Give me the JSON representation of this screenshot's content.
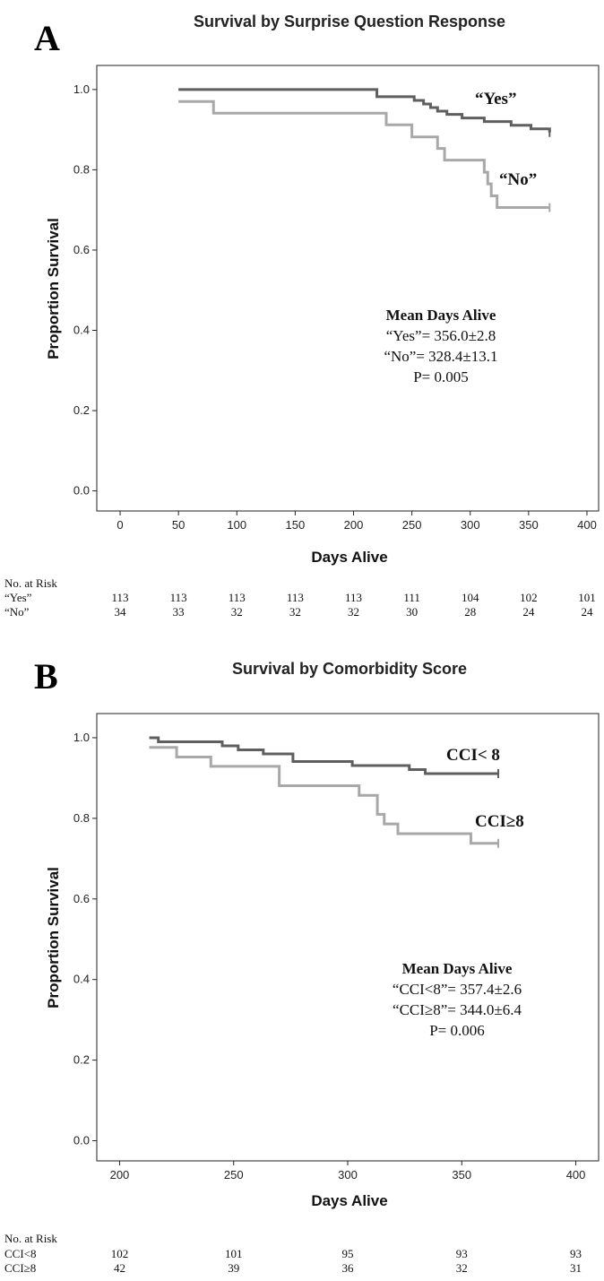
{
  "chart_data": [
    {
      "type": "line",
      "panel": "A",
      "title": "Survival by Surprise Question Response",
      "xlabel": "Days Alive",
      "ylabel": "Proportion Survival",
      "xlim": [
        -20,
        410
      ],
      "ylim": [
        -0.05,
        1.06
      ],
      "xticks": [
        0,
        50,
        100,
        150,
        200,
        250,
        300,
        350,
        400
      ],
      "yticks": [
        0.0,
        0.2,
        0.4,
        0.6,
        0.8,
        1.0
      ],
      "xtick_labels": [
        "0",
        "50",
        "100",
        "150",
        "200",
        "250",
        "300",
        "350",
        "400"
      ],
      "ytick_labels": [
        "0.0",
        "0.2",
        "0.4",
        "0.6",
        "0.8",
        "1.0"
      ],
      "grid": false,
      "series": [
        {
          "name": "“Yes”",
          "color": "#5f5f5f",
          "step": true,
          "x": [
            50,
            215,
            220,
            243,
            252,
            260,
            266,
            272,
            280,
            293,
            312,
            335,
            352,
            368
          ],
          "y": [
            1.0,
            1.0,
            0.982,
            0.982,
            0.973,
            0.964,
            0.955,
            0.946,
            0.938,
            0.929,
            0.92,
            0.911,
            0.902,
            0.893
          ],
          "censor": [
            [
              368,
              0.893
            ]
          ]
        },
        {
          "name": "“No”",
          "color": "#a8a8a8",
          "step": true,
          "x": [
            50,
            80,
            228,
            250,
            272,
            278,
            312,
            315,
            318,
            323,
            368
          ],
          "y": [
            0.97,
            0.941,
            0.912,
            0.882,
            0.853,
            0.824,
            0.794,
            0.765,
            0.735,
            0.706,
            0.706
          ],
          "censor": [
            [
              368,
              0.706
            ]
          ]
        }
      ],
      "annotation": {
        "heading": "Mean Days Alive",
        "lines": [
          "“Yes”= 356.0±2.8",
          "“No”= 328.4±13.1",
          "P= 0.005"
        ]
      },
      "risk_table": {
        "header": "No. at Risk",
        "rows": [
          {
            "label": "“Yes”",
            "values": [
              "113",
              "113",
              "113",
              "113",
              "113",
              "111",
              "104",
              "102",
              "101"
            ]
          },
          {
            "label": "“No”",
            "values": [
              "34",
              "33",
              "32",
              "32",
              "32",
              "30",
              "28",
              "24",
              "24"
            ]
          }
        ]
      }
    },
    {
      "type": "line",
      "panel": "B",
      "title": "Survival by Comorbidity Score",
      "xlabel": "Days Alive",
      "ylabel": "Proportion Survival",
      "xlim": [
        190,
        410
      ],
      "ylim": [
        -0.05,
        1.06
      ],
      "xticks": [
        200,
        250,
        300,
        350,
        400
      ],
      "yticks": [
        0.0,
        0.2,
        0.4,
        0.6,
        0.8,
        1.0
      ],
      "xtick_labels": [
        "200",
        "250",
        "300",
        "350",
        "400"
      ],
      "ytick_labels": [
        "0.0",
        "0.2",
        "0.4",
        "0.6",
        "0.8",
        "1.0"
      ],
      "grid": false,
      "series": [
        {
          "name": "CCI< 8",
          "color": "#5f5f5f",
          "step": true,
          "x": [
            213,
            217,
            245,
            252,
            263,
            276,
            302,
            327,
            334,
            366
          ],
          "y": [
            1.0,
            0.99,
            0.98,
            0.97,
            0.96,
            0.941,
            0.931,
            0.921,
            0.911,
            0.911
          ],
          "censor": [
            [
              366,
              0.911
            ]
          ]
        },
        {
          "name": "CCI≥8",
          "color": "#a8a8a8",
          "step": true,
          "x": [
            213,
            225,
            240,
            270,
            305,
            313,
            316,
            322,
            354,
            366
          ],
          "y": [
            0.976,
            0.952,
            0.929,
            0.881,
            0.857,
            0.81,
            0.786,
            0.762,
            0.738,
            0.738
          ],
          "censor": [
            [
              366,
              0.738
            ]
          ]
        }
      ],
      "annotation": {
        "heading": "Mean Days Alive",
        "lines": [
          "“CCI<8”= 357.4±2.6",
          "“CCI≥8”= 344.0±6.4",
          "P= 0.006"
        ]
      },
      "risk_table": {
        "header": "No. at Risk",
        "rows": [
          {
            "label": "CCI<8",
            "values": [
              "102",
              "101",
              "95",
              "93",
              "93"
            ]
          },
          {
            "label": "CCI≥8",
            "values": [
              "42",
              "39",
              "36",
              "32",
              "31"
            ]
          }
        ]
      }
    }
  ]
}
